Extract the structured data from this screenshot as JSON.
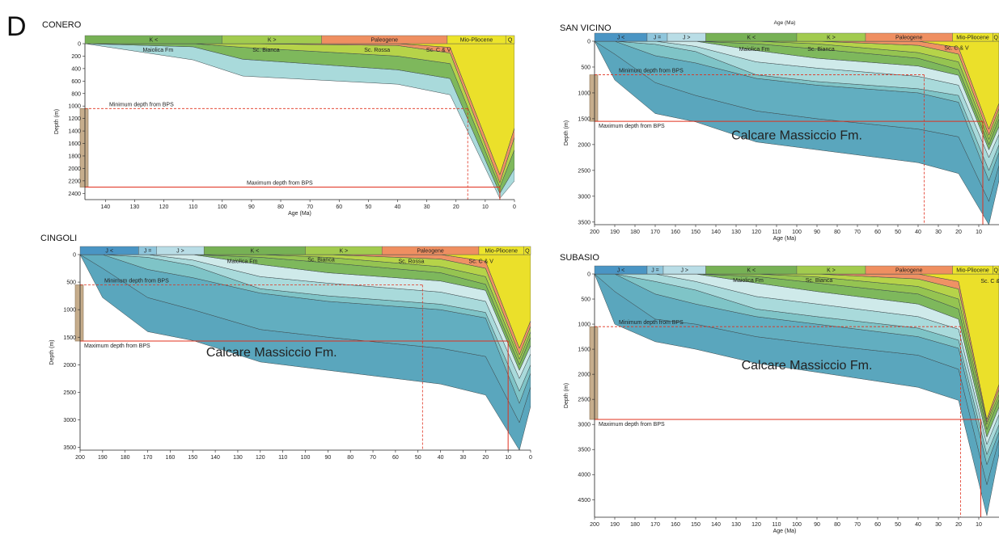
{
  "figure_label": "D",
  "colors": {
    "J_lt": "#4a95c4",
    "J_eq": "#8fc6dc",
    "J_gt": "#b9dde6",
    "K_lt": "#77b155",
    "K_gt": "#a2cb4f",
    "Paleogene": "#ef8f61",
    "MioPlio": "#ece42b",
    "strat_1": "#5aa6bd",
    "strat_2": "#62aec0",
    "strat_3": "#7fc4c7",
    "strat_4": "#a9dadb",
    "strat_5": "#cfeaea",
    "strat_6": "#7eb85c",
    "strat_7": "#95c451",
    "strat_8": "#b6d349",
    "strat_9": "#ef9264",
    "strat_10": "#ebe02a",
    "bps": "#c6ad8c",
    "bps_edge": "#8c7456",
    "red_line": "#e0301e"
  },
  "chart_data": [
    {
      "type": "area",
      "title": "CONERO",
      "xlabel": "Age (Ma)",
      "ylabel": "Depth (m)",
      "xlim": [
        147,
        0
      ],
      "ylim": [
        0,
        2500
      ],
      "xticks": [
        140,
        130,
        120,
        110,
        100,
        90,
        80,
        70,
        60,
        50,
        40,
        30,
        20,
        10,
        0
      ],
      "yticks": [
        0,
        200,
        400,
        600,
        800,
        1000,
        1200,
        1400,
        1600,
        1800,
        2000,
        2200,
        2400
      ],
      "periods": [
        {
          "label": "K <",
          "from": 147,
          "to": 100,
          "color": "K_lt"
        },
        {
          "label": "K >",
          "from": 100,
          "to": 66,
          "color": "K_gt"
        },
        {
          "label": "Paleogene",
          "from": 66,
          "to": 23,
          "color": "Paleogene"
        },
        {
          "label": "Mio-Pliocene",
          "from": 23,
          "to": 3,
          "color": "MioPlio"
        },
        {
          "label": "Q",
          "from": 3,
          "to": 0,
          "color": "MioPlio"
        }
      ],
      "x": [
        147,
        110,
        93,
        40,
        22,
        5,
        0
      ],
      "horizons": [
        {
          "name": "Maiolica Fm",
          "color": "strat_4",
          "values": [
            0,
            260,
            520,
            650,
            820,
            2480,
            2200
          ]
        },
        {
          "name": "Sc. Bianca",
          "color": "strat_6",
          "values": [
            0,
            50,
            250,
            420,
            560,
            2400,
            2000
          ]
        },
        {
          "name": "Sc. Rossa",
          "color": "strat_8",
          "values": [
            0,
            0,
            60,
            200,
            320,
            2300,
            1700
          ]
        },
        {
          "name": "Sc. C & V",
          "color": "strat_9",
          "values": [
            0,
            0,
            0,
            30,
            150,
            2230,
            1500
          ]
        },
        {
          "name": "",
          "color": "strat_10",
          "values": [
            0,
            0,
            0,
            0,
            60,
            2100,
            1350
          ]
        }
      ],
      "layer_labels": [
        {
          "text": "Maiolica Fm",
          "x": 122,
          "y": 90
        },
        {
          "text": "Sc. Bianca",
          "x": 85,
          "y": 90
        },
        {
          "text": "Sc. Rossa",
          "x": 47,
          "y": 90
        },
        {
          "text": "Sc. C & V",
          "x": 26,
          "y": 90
        }
      ],
      "min_depth": 1040,
      "max_depth": 2300,
      "min_label": "Minimum depth from BPS",
      "max_label": "Maximum depth from BPS",
      "min_cross_age": 16,
      "max_cross_age": 5
    },
    {
      "type": "area",
      "title": "SAN VICINO",
      "top_xlabel": "Age (Ma)",
      "xlabel": "Age (Ma)",
      "ylabel": "Depth (m)",
      "xlim": [
        200,
        0
      ],
      "ylim": [
        0,
        3550
      ],
      "xticks": [
        200,
        190,
        180,
        170,
        160,
        150,
        140,
        130,
        120,
        110,
        100,
        90,
        80,
        70,
        60,
        50,
        40,
        30,
        20,
        10
      ],
      "yticks": [
        0,
        500,
        1000,
        1500,
        2000,
        2500,
        3000,
        3500
      ],
      "periods": [
        {
          "label": "J <",
          "from": 200,
          "to": 174,
          "color": "J_lt"
        },
        {
          "label": "J =",
          "from": 174,
          "to": 164,
          "color": "J_eq"
        },
        {
          "label": "J >",
          "from": 164,
          "to": 145,
          "color": "J_gt"
        },
        {
          "label": "K <",
          "from": 145,
          "to": 100,
          "color": "K_lt"
        },
        {
          "label": "K >",
          "from": 100,
          "to": 66,
          "color": "K_gt"
        },
        {
          "label": "Paleogene",
          "from": 66,
          "to": 23,
          "color": "Paleogene"
        },
        {
          "label": "Mio-Pliocene",
          "from": 23,
          "to": 3,
          "color": "MioPlio"
        },
        {
          "label": "Q",
          "from": 3,
          "to": 0,
          "color": "MioPlio"
        }
      ],
      "big_label": "Calcare Massiccio Fm.",
      "big_label_pos": {
        "x": 100,
        "y": 1900
      },
      "x": [
        200,
        190,
        170,
        150,
        120,
        90,
        40,
        20,
        5,
        0
      ],
      "horizons": [
        {
          "name": "",
          "color": "strat_1",
          "values": [
            0,
            750,
            1400,
            1560,
            1950,
            2100,
            2350,
            2560,
            3550,
            2700
          ]
        },
        {
          "name": "",
          "color": "strat_2",
          "values": [
            0,
            250,
            800,
            1050,
            1350,
            1500,
            1700,
            1850,
            3100,
            2400
          ]
        },
        {
          "name": "",
          "color": "strat_3",
          "values": [
            0,
            0,
            280,
            420,
            720,
            850,
            1000,
            1180,
            2700,
            2150
          ]
        },
        {
          "name": "Maiolica Fm",
          "color": "strat_4",
          "values": [
            0,
            0,
            60,
            200,
            650,
            780,
            920,
            1050,
            2500,
            2000
          ]
        },
        {
          "name": "",
          "color": "strat_5",
          "values": [
            0,
            0,
            0,
            100,
            400,
            520,
            680,
            850,
            2250,
            1800
          ]
        },
        {
          "name": "Sc. Bianca",
          "color": "strat_6",
          "values": [
            0,
            0,
            0,
            0,
            180,
            330,
            480,
            660,
            2100,
            1650
          ]
        },
        {
          "name": "",
          "color": "strat_7",
          "values": [
            0,
            0,
            0,
            0,
            50,
            150,
            330,
            550,
            2000,
            1500
          ]
        },
        {
          "name": "",
          "color": "strat_8",
          "values": [
            0,
            0,
            0,
            0,
            0,
            50,
            220,
            400,
            1900,
            1400
          ]
        },
        {
          "name": "Sc. C & V",
          "color": "strat_9",
          "values": [
            0,
            0,
            0,
            0,
            0,
            0,
            80,
            250,
            1820,
            1300
          ]
        },
        {
          "name": "",
          "color": "strat_10",
          "values": [
            0,
            0,
            0,
            0,
            0,
            0,
            0,
            120,
            1700,
            1200
          ]
        }
      ],
      "layer_labels": [
        {
          "text": "Maiolica Fm",
          "x": 121,
          "y": 140
        },
        {
          "text": "Sc. Bianca",
          "x": 88,
          "y": 140
        },
        {
          "text": "Sc. C & V",
          "x": 21,
          "y": 120
        }
      ],
      "min_depth": 650,
      "max_depth": 1550,
      "min_label": "Minimum depth from BPS",
      "max_label": "Maximum depth from BPS",
      "min_cross_age": 37,
      "max_cross_age": 8
    },
    {
      "type": "area",
      "title": "CINGOLI",
      "xlabel": "",
      "ylabel": "Depth (m)",
      "xlim": [
        200,
        0
      ],
      "ylim": [
        0,
        3550
      ],
      "xticks": [
        200,
        190,
        180,
        170,
        160,
        150,
        140,
        130,
        120,
        110,
        100,
        90,
        80,
        70,
        60,
        50,
        40,
        30,
        20,
        10,
        0
      ],
      "yticks": [
        0,
        500,
        1000,
        1500,
        2000,
        2500,
        3000,
        3500
      ],
      "periods": [
        {
          "label": "J <",
          "from": 200,
          "to": 174,
          "color": "J_lt"
        },
        {
          "label": "J =",
          "from": 174,
          "to": 166,
          "color": "J_eq"
        },
        {
          "label": "J >",
          "from": 166,
          "to": 145,
          "color": "J_gt"
        },
        {
          "label": "K <",
          "from": 145,
          "to": 100,
          "color": "K_lt"
        },
        {
          "label": "K >",
          "from": 100,
          "to": 66,
          "color": "K_gt"
        },
        {
          "label": "Paleogene",
          "from": 66,
          "to": 23,
          "color": "Paleogene"
        },
        {
          "label": "Mio-Pliocene",
          "from": 23,
          "to": 3,
          "color": "MioPlio"
        },
        {
          "label": "Q",
          "from": 3,
          "to": 0,
          "color": "MioPlio"
        }
      ],
      "big_label": "Calcare Massiccio Fm.",
      "big_label_pos": {
        "x": 115,
        "y": 1850
      },
      "x": [
        200,
        190,
        170,
        150,
        120,
        90,
        40,
        20,
        5,
        0
      ],
      "horizons": [
        {
          "name": "",
          "color": "strat_1",
          "values": [
            0,
            780,
            1400,
            1560,
            1950,
            2100,
            2350,
            2550,
            3550,
            2750
          ]
        },
        {
          "name": "",
          "color": "strat_2",
          "values": [
            0,
            250,
            780,
            1000,
            1360,
            1500,
            1700,
            1850,
            3050,
            2400
          ]
        },
        {
          "name": "",
          "color": "strat_3",
          "values": [
            0,
            0,
            270,
            420,
            700,
            850,
            1000,
            1150,
            2700,
            2150
          ]
        },
        {
          "name": "Maiolica Fm",
          "color": "strat_4",
          "values": [
            0,
            0,
            50,
            200,
            620,
            750,
            900,
            1050,
            2480,
            2000
          ]
        },
        {
          "name": "",
          "color": "strat_5",
          "values": [
            0,
            0,
            0,
            100,
            400,
            520,
            680,
            850,
            2250,
            1800
          ]
        },
        {
          "name": "Sc. Bianca",
          "color": "strat_6",
          "values": [
            0,
            0,
            0,
            0,
            180,
            330,
            480,
            650,
            2100,
            1650
          ]
        },
        {
          "name": "",
          "color": "strat_7",
          "values": [
            0,
            0,
            0,
            0,
            50,
            150,
            330,
            540,
            2000,
            1500
          ]
        },
        {
          "name": "Sc. Rossa",
          "color": "strat_8",
          "values": [
            0,
            0,
            0,
            0,
            0,
            50,
            220,
            400,
            1900,
            1400
          ]
        },
        {
          "name": "Sc. C & V",
          "color": "strat_9",
          "values": [
            0,
            0,
            0,
            0,
            0,
            0,
            80,
            250,
            1820,
            1300
          ]
        },
        {
          "name": "",
          "color": "strat_10",
          "values": [
            0,
            0,
            0,
            0,
            0,
            0,
            0,
            120,
            1700,
            1200
          ]
        }
      ],
      "layer_labels": [
        {
          "text": "Maiolica Fm",
          "x": 128,
          "y": 110
        },
        {
          "text": "Sc. Bianca",
          "x": 93,
          "y": 80
        },
        {
          "text": "Sc. Rossa",
          "x": 53,
          "y": 110
        },
        {
          "text": "Sc. C & V",
          "x": 22,
          "y": 110
        }
      ],
      "min_depth": 550,
      "max_depth": 1570,
      "min_label": "Minimum depth from BPS",
      "max_label": "Maximum depth from BPS",
      "min_cross_age": 48,
      "max_cross_age": 10
    },
    {
      "type": "area",
      "title": "SUBASIO",
      "xlabel": "Age (Ma)",
      "ylabel": "Depth (m)",
      "xlim": [
        200,
        0
      ],
      "ylim": [
        0,
        4850
      ],
      "xticks": [
        200,
        190,
        180,
        170,
        160,
        150,
        140,
        130,
        120,
        110,
        100,
        90,
        80,
        70,
        60,
        50,
        40,
        30,
        20,
        10
      ],
      "yticks": [
        0,
        500,
        1000,
        1500,
        2000,
        2500,
        3000,
        3500,
        4000,
        4500
      ],
      "periods": [
        {
          "label": "J <",
          "from": 200,
          "to": 174,
          "color": "J_lt"
        },
        {
          "label": "J =",
          "from": 174,
          "to": 166,
          "color": "J_eq"
        },
        {
          "label": "J >",
          "from": 166,
          "to": 145,
          "color": "J_gt"
        },
        {
          "label": "K <",
          "from": 145,
          "to": 100,
          "color": "K_lt"
        },
        {
          "label": "K >",
          "from": 100,
          "to": 66,
          "color": "K_gt"
        },
        {
          "label": "Paleogene",
          "from": 66,
          "to": 23,
          "color": "Paleogene"
        },
        {
          "label": "Mio-Pliocene",
          "from": 23,
          "to": 3,
          "color": "MioPlio"
        },
        {
          "label": "Q",
          "from": 3,
          "to": 0,
          "color": "MioPlio"
        }
      ],
      "big_label": "Calcare Massiccio Fm.",
      "big_label_pos": {
        "x": 95,
        "y": 1900
      },
      "x": [
        200,
        190,
        170,
        150,
        120,
        90,
        40,
        20,
        6,
        0
      ],
      "horizons": [
        {
          "name": "",
          "color": "strat_1",
          "values": [
            0,
            1000,
            1350,
            1500,
            1780,
            1960,
            2260,
            2520,
            4820,
            3600
          ]
        },
        {
          "name": "",
          "color": "strat_2",
          "values": [
            0,
            350,
            900,
            1000,
            1250,
            1400,
            1620,
            1900,
            4200,
            3300
          ]
        },
        {
          "name": "",
          "color": "strat_3",
          "values": [
            0,
            0,
            400,
            600,
            850,
            1000,
            1250,
            1480,
            3800,
            3150
          ]
        },
        {
          "name": "",
          "color": "strat_4",
          "values": [
            0,
            0,
            150,
            320,
            700,
            850,
            1080,
            1320,
            3600,
            3000
          ]
        },
        {
          "name": "Maiolica Fm",
          "color": "strat_5",
          "values": [
            0,
            0,
            0,
            150,
            450,
            600,
            850,
            1100,
            3400,
            2800
          ]
        },
        {
          "name": "Sc. Bianca",
          "color": "strat_6",
          "values": [
            0,
            0,
            0,
            0,
            180,
            350,
            600,
            900,
            3250,
            2650
          ]
        },
        {
          "name": "",
          "color": "strat_7",
          "values": [
            0,
            0,
            0,
            0,
            50,
            180,
            400,
            700,
            3100,
            2500
          ]
        },
        {
          "name": "",
          "color": "strat_8",
          "values": [
            0,
            0,
            0,
            0,
            0,
            60,
            250,
            500,
            3000,
            2400
          ]
        },
        {
          "name": "Sc. C & V",
          "color": "strat_9",
          "values": [
            0,
            0,
            0,
            0,
            0,
            0,
            100,
            300,
            2950,
            2300
          ]
        },
        {
          "name": "",
          "color": "strat_10",
          "values": [
            0,
            0,
            0,
            0,
            0,
            0,
            0,
            150,
            2900,
            2200
          ]
        }
      ],
      "layer_labels": [
        {
          "text": "Maiolica Fm",
          "x": 124,
          "y": 110
        },
        {
          "text": "Sc. Bianca",
          "x": 89,
          "y": 110
        },
        {
          "text": "Sc. C & V",
          "x": 3,
          "y": 130
        }
      ],
      "min_depth": 1050,
      "max_depth": 2900,
      "min_label": "Minimum depth from BPS",
      "max_label": "Maximum depth from BPS",
      "min_cross_age": 19,
      "max_cross_age": 9
    }
  ]
}
